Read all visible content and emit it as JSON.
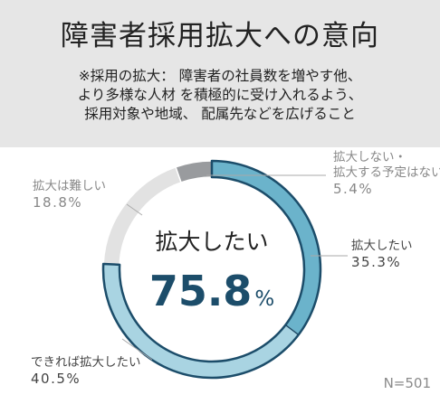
{
  "header": {
    "title": "障害者採用拡大への意向",
    "note_lines": [
      "※採用の拡大： 障害者の社員数を増やす他、",
      "より多様な人材 を積極的に受け入れるよう、",
      "採用対象や地域、 配属先などを広げること"
    ]
  },
  "sample_size": "N=501",
  "chart_data": {
    "type": "pie",
    "variant": "donut",
    "center_label": "拡大したい",
    "center_value": "75.8",
    "center_unit": "%",
    "slices": [
      {
        "label": "拡大したい",
        "label_lines": [
          "拡大したい"
        ],
        "value": 35.3,
        "value_text": "35.3%",
        "color": "#6bb3cb",
        "highlight": true
      },
      {
        "label": "できれば拡大したい",
        "label_lines": [
          "できれば拡大したい"
        ],
        "value": 40.5,
        "value_text": "40.5%",
        "color": "#a9d4e2",
        "highlight": true
      },
      {
        "label": "拡大は難しい",
        "label_lines": [
          "拡大は難しい"
        ],
        "value": 18.8,
        "value_text": "18.8%",
        "color": "#e2e2e2",
        "highlight": false
      },
      {
        "label": "拡大しない・拡大する予定はない",
        "label_lines": [
          "拡大しない・",
          "拡大する予定はない"
        ],
        "value": 5.4,
        "value_text": "5.4%",
        "color": "#999b9e",
        "highlight": false
      }
    ],
    "colors": {
      "outline": "#1c4d6a",
      "value_text": "#1c4d6a",
      "label_text": "#444444",
      "muted_text": "#888888",
      "leader": "#aaaaaa"
    }
  }
}
